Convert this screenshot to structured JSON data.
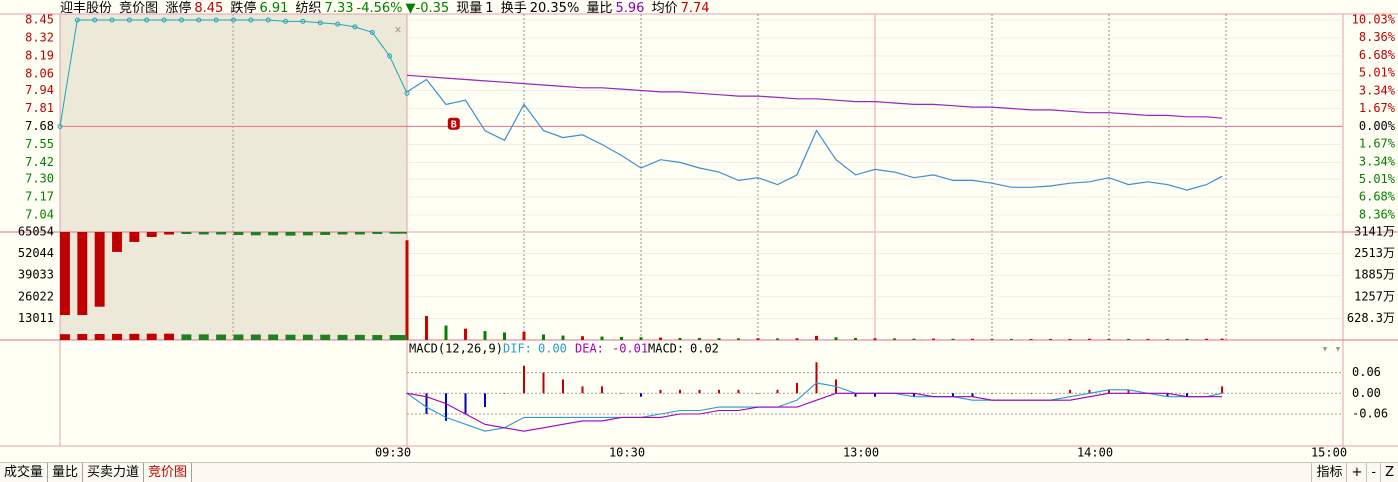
{
  "header": {
    "stock": "迎丰股份",
    "view": "竞价图",
    "limit_up_label": "涨停",
    "limit_up": "8.45",
    "limit_down_label": "跌停",
    "limit_down": "6.91",
    "sector": "纺织",
    "sector_price": "7.33",
    "sector_change": "-4.56%",
    "change": "-0.35",
    "volume_label": "现量",
    "volume": "1",
    "turnover_label": "换手",
    "turnover": "20.35%",
    "ratio_label": "量比",
    "ratio": "5.96",
    "avg_label": "均价",
    "avg": "7.74"
  },
  "chart_data": [
    {
      "type": "line",
      "x": [
        0,
        5,
        10,
        15,
        20,
        25,
        30,
        35,
        40,
        45,
        50,
        55,
        60,
        65,
        70,
        75,
        80,
        85,
        90,
        95,
        100,
        105,
        110,
        115,
        120,
        125,
        130,
        135,
        140,
        145,
        150,
        155,
        160,
        165,
        170,
        175,
        180,
        185,
        190,
        195,
        200,
        205,
        209
      ],
      "series": [
        {
          "color": "#3b8fd0",
          "values": [
            7.93,
            8.02,
            7.84,
            7.87,
            7.65,
            7.58,
            7.84,
            7.65,
            7.6,
            7.62,
            7.55,
            7.47,
            7.38,
            7.44,
            7.42,
            7.38,
            7.35,
            7.29,
            7.31,
            7.26,
            7.33,
            7.65,
            7.44,
            7.33,
            7.37,
            7.35,
            7.31,
            7.33,
            7.29,
            7.29,
            7.27,
            7.24,
            7.24,
            7.25,
            7.27,
            7.28,
            7.31,
            7.26,
            7.28,
            7.26,
            7.22,
            7.26,
            7.32
          ]
        },
        {
          "color": "#a020c0",
          "values": [
            8.05,
            8.04,
            8.03,
            8.02,
            8.01,
            8.0,
            7.99,
            7.98,
            7.97,
            7.96,
            7.96,
            7.95,
            7.94,
            7.93,
            7.93,
            7.92,
            7.91,
            7.9,
            7.9,
            7.89,
            7.88,
            7.88,
            7.87,
            7.86,
            7.86,
            7.85,
            7.84,
            7.84,
            7.83,
            7.82,
            7.82,
            7.81,
            7.8,
            7.8,
            7.79,
            7.78,
            7.78,
            7.77,
            7.76,
            7.76,
            7.75,
            7.75,
            7.74
          ]
        }
      ],
      "xlim": [
        0,
        240
      ],
      "xticks": [
        {
          "value": 0,
          "label": "09:30"
        },
        {
          "value": 60,
          "label": "10:30"
        },
        {
          "value": 120,
          "label": "13:00"
        },
        {
          "value": 180,
          "label": "14:00"
        },
        {
          "value": 240,
          "label": "15:00"
        }
      ],
      "ylim": [
        7.04,
        8.45
      ],
      "yticks": [
        8.45,
        8.32,
        8.19,
        8.06,
        7.94,
        7.81,
        7.68,
        7.55,
        7.42,
        {
          "value": 7.3,
          "label": "7.30"
        },
        7.17,
        7.04
      ],
      "y2lim": [
        -8.36,
        10.03
      ],
      "y2ticks": [
        {
          "value": 10.03,
          "label": "10.03%"
        },
        {
          "value": 8.36,
          "label": "8.36%"
        },
        {
          "value": 6.68,
          "label": "6.68%"
        },
        {
          "value": 5.01,
          "label": "5.01%"
        },
        {
          "value": 3.34,
          "label": "3.34%"
        },
        {
          "value": 1.67,
          "label": "1.67%"
        },
        {
          "value": 0,
          "label": "0.00%"
        },
        {
          "value": -1.67,
          "label": "1.67%"
        },
        {
          "value": -3.34,
          "label": "3.34%"
        },
        {
          "value": -5.01,
          "label": "5.01%"
        },
        {
          "value": -6.68,
          "label": "6.68%"
        },
        {
          "value": -8.36,
          "label": "8.36%"
        }
      ],
      "annotations": [
        {
          "text": "B",
          "x": 12,
          "y": 7.7
        }
      ]
    },
    {
      "type": "line",
      "x": [
        0,
        0.5,
        1,
        1.5,
        2,
        2.5,
        3,
        3.5,
        4,
        4.5,
        5,
        5.5,
        6,
        6.5,
        7,
        7.5,
        8,
        8.5,
        9,
        9.5,
        10
      ],
      "series": [
        {
          "color": "#1fa5b5",
          "values": [
            7.68,
            8.45,
            8.45,
            8.45,
            8.45,
            8.45,
            8.45,
            8.45,
            8.45,
            8.45,
            8.45,
            8.45,
            8.45,
            8.44,
            8.44,
            8.43,
            8.42,
            8.4,
            8.36,
            8.19,
            7.92
          ]
        }
      ],
      "xlim": [
        0,
        10
      ]
    },
    {
      "type": "bar",
      "x": [
        0,
        5,
        10,
        15,
        20,
        25,
        30,
        35,
        40,
        45,
        50,
        55,
        60,
        65,
        70,
        75,
        80,
        85,
        90,
        95,
        100,
        105,
        110,
        115,
        120,
        125,
        130,
        135,
        140,
        145,
        150,
        155,
        160,
        165,
        170,
        175,
        180,
        185,
        190,
        195,
        200,
        205,
        209
      ],
      "values": [
        2900,
        700,
        420,
        330,
        260,
        220,
        240,
        160,
        130,
        110,
        100,
        90,
        80,
        70,
        60,
        60,
        55,
        50,
        50,
        45,
        50,
        120,
        80,
        60,
        50,
        45,
        40,
        40,
        35,
        35,
        30,
        30,
        30,
        30,
        30,
        35,
        30,
        30,
        30,
        30,
        35,
        35,
        40
      ],
      "up_color": "#d00000",
      "down_color": "#008000",
      "y2lim": [
        0,
        3141
      ],
      "y2ticks": [
        {
          "value": 3141,
          "label": "3141万"
        },
        {
          "value": 2513,
          "label": "2513万"
        },
        {
          "value": 1885,
          "label": "1885万"
        },
        {
          "value": 1257,
          "label": "1257万"
        },
        {
          "value": 628.3,
          "label": "628.3万"
        }
      ]
    },
    {
      "type": "bar",
      "x": [
        0,
        0.5,
        1,
        1.5,
        2,
        2.5,
        3,
        3.5,
        4,
        4.5,
        5,
        5.5,
        6,
        6.5,
        7,
        7.5,
        8,
        8.5,
        9,
        9.5,
        10
      ],
      "series": [
        {
          "color": "#c00000",
          "values": [
            50000,
            50000,
            45000,
            12000,
            6000,
            3000,
            1500,
            null,
            null,
            null,
            null,
            null,
            null,
            null,
            null,
            null,
            null,
            null,
            null,
            null,
            null
          ]
        },
        {
          "color": "#208020",
          "values": [
            null,
            null,
            null,
            null,
            null,
            null,
            null,
            1200,
            1500,
            1500,
            1800,
            2000,
            2000,
            2200,
            2000,
            1800,
            1500,
            1500,
            1200,
            1000,
            1000
          ]
        },
        {
          "color": "#b00000",
          "values": [
            3500,
            3600,
            3600,
            3700,
            3700,
            3800,
            3800,
            3400,
            3400,
            3300,
            3300,
            3300,
            3300,
            3200,
            3200,
            3200,
            3100,
            3100,
            3000,
            3000,
            3000
          ]
        }
      ],
      "xlim": [
        0,
        10
      ],
      "ylim": [
        0,
        65054
      ],
      "yticks": [
        65054,
        52044,
        39033,
        26022,
        13011
      ]
    },
    {
      "type": "macd",
      "title": "MACD(12,26,9)",
      "x": [
        0,
        5,
        10,
        15,
        20,
        25,
        30,
        35,
        40,
        45,
        50,
        55,
        60,
        65,
        70,
        75,
        80,
        85,
        90,
        95,
        100,
        105,
        110,
        115,
        120,
        125,
        130,
        135,
        140,
        145,
        150,
        155,
        160,
        165,
        170,
        175,
        180,
        185,
        190,
        195,
        200,
        205,
        209
      ],
      "series": [
        {
          "name": "DIF:",
          "readout": "0.00",
          "color": "#2a9ad0",
          "values": [
            0,
            -0.04,
            -0.07,
            -0.09,
            -0.11,
            -0.1,
            -0.07,
            -0.07,
            -0.07,
            -0.07,
            -0.07,
            -0.07,
            -0.07,
            -0.06,
            -0.05,
            -0.05,
            -0.04,
            -0.04,
            -0.04,
            -0.04,
            -0.02,
            0.03,
            0.02,
            0,
            0,
            0,
            -0.01,
            -0.01,
            -0.01,
            -0.02,
            -0.02,
            -0.02,
            -0.02,
            -0.02,
            -0.01,
            0,
            0.01,
            0.01,
            0,
            -0.01,
            -0.01,
            -0.01,
            0
          ]
        },
        {
          "name": "DEA:",
          "readout": "-0.01",
          "color": "#a000c0",
          "values": [
            0,
            -0.01,
            -0.03,
            -0.06,
            -0.09,
            -0.1,
            -0.11,
            -0.1,
            -0.09,
            -0.08,
            -0.08,
            -0.07,
            -0.07,
            -0.07,
            -0.06,
            -0.06,
            -0.05,
            -0.05,
            -0.04,
            -0.04,
            -0.04,
            -0.02,
            0,
            0,
            0,
            0,
            0,
            -0.01,
            -0.01,
            -0.01,
            -0.02,
            -0.02,
            -0.02,
            -0.02,
            -0.02,
            -0.01,
            0,
            0,
            0,
            0,
            -0.01,
            -0.01,
            -0.01
          ]
        },
        {
          "name": "MACD:",
          "readout": "0.02",
          "up_color": "#c00000",
          "down_color": "#0000c0",
          "values": [
            0,
            -0.06,
            -0.08,
            -0.06,
            -0.04,
            0,
            0.08,
            0.06,
            0.04,
            0.02,
            0.02,
            0,
            -0.01,
            0.01,
            0.01,
            0.01,
            0.01,
            0.01,
            0,
            0.01,
            0.03,
            0.09,
            0.04,
            -0.01,
            -0.01,
            0,
            -0.01,
            0,
            -0.01,
            -0.01,
            0,
            0,
            0,
            0,
            0.01,
            0.01,
            0.01,
            0.01,
            0,
            -0.01,
            -0.01,
            0,
            0.02
          ]
        }
      ],
      "ylim": [
        -0.15,
        0.14
      ],
      "yticks": [
        0.06,
        {
          "value": 0,
          "label": "0.00"
        },
        -0.06
      ]
    }
  ],
  "tabs": [
    "成交量",
    "量比",
    "买卖力道",
    "竞价图"
  ],
  "active_tab": 3,
  "buttons": [
    "指标",
    "+",
    "-",
    "Z"
  ]
}
